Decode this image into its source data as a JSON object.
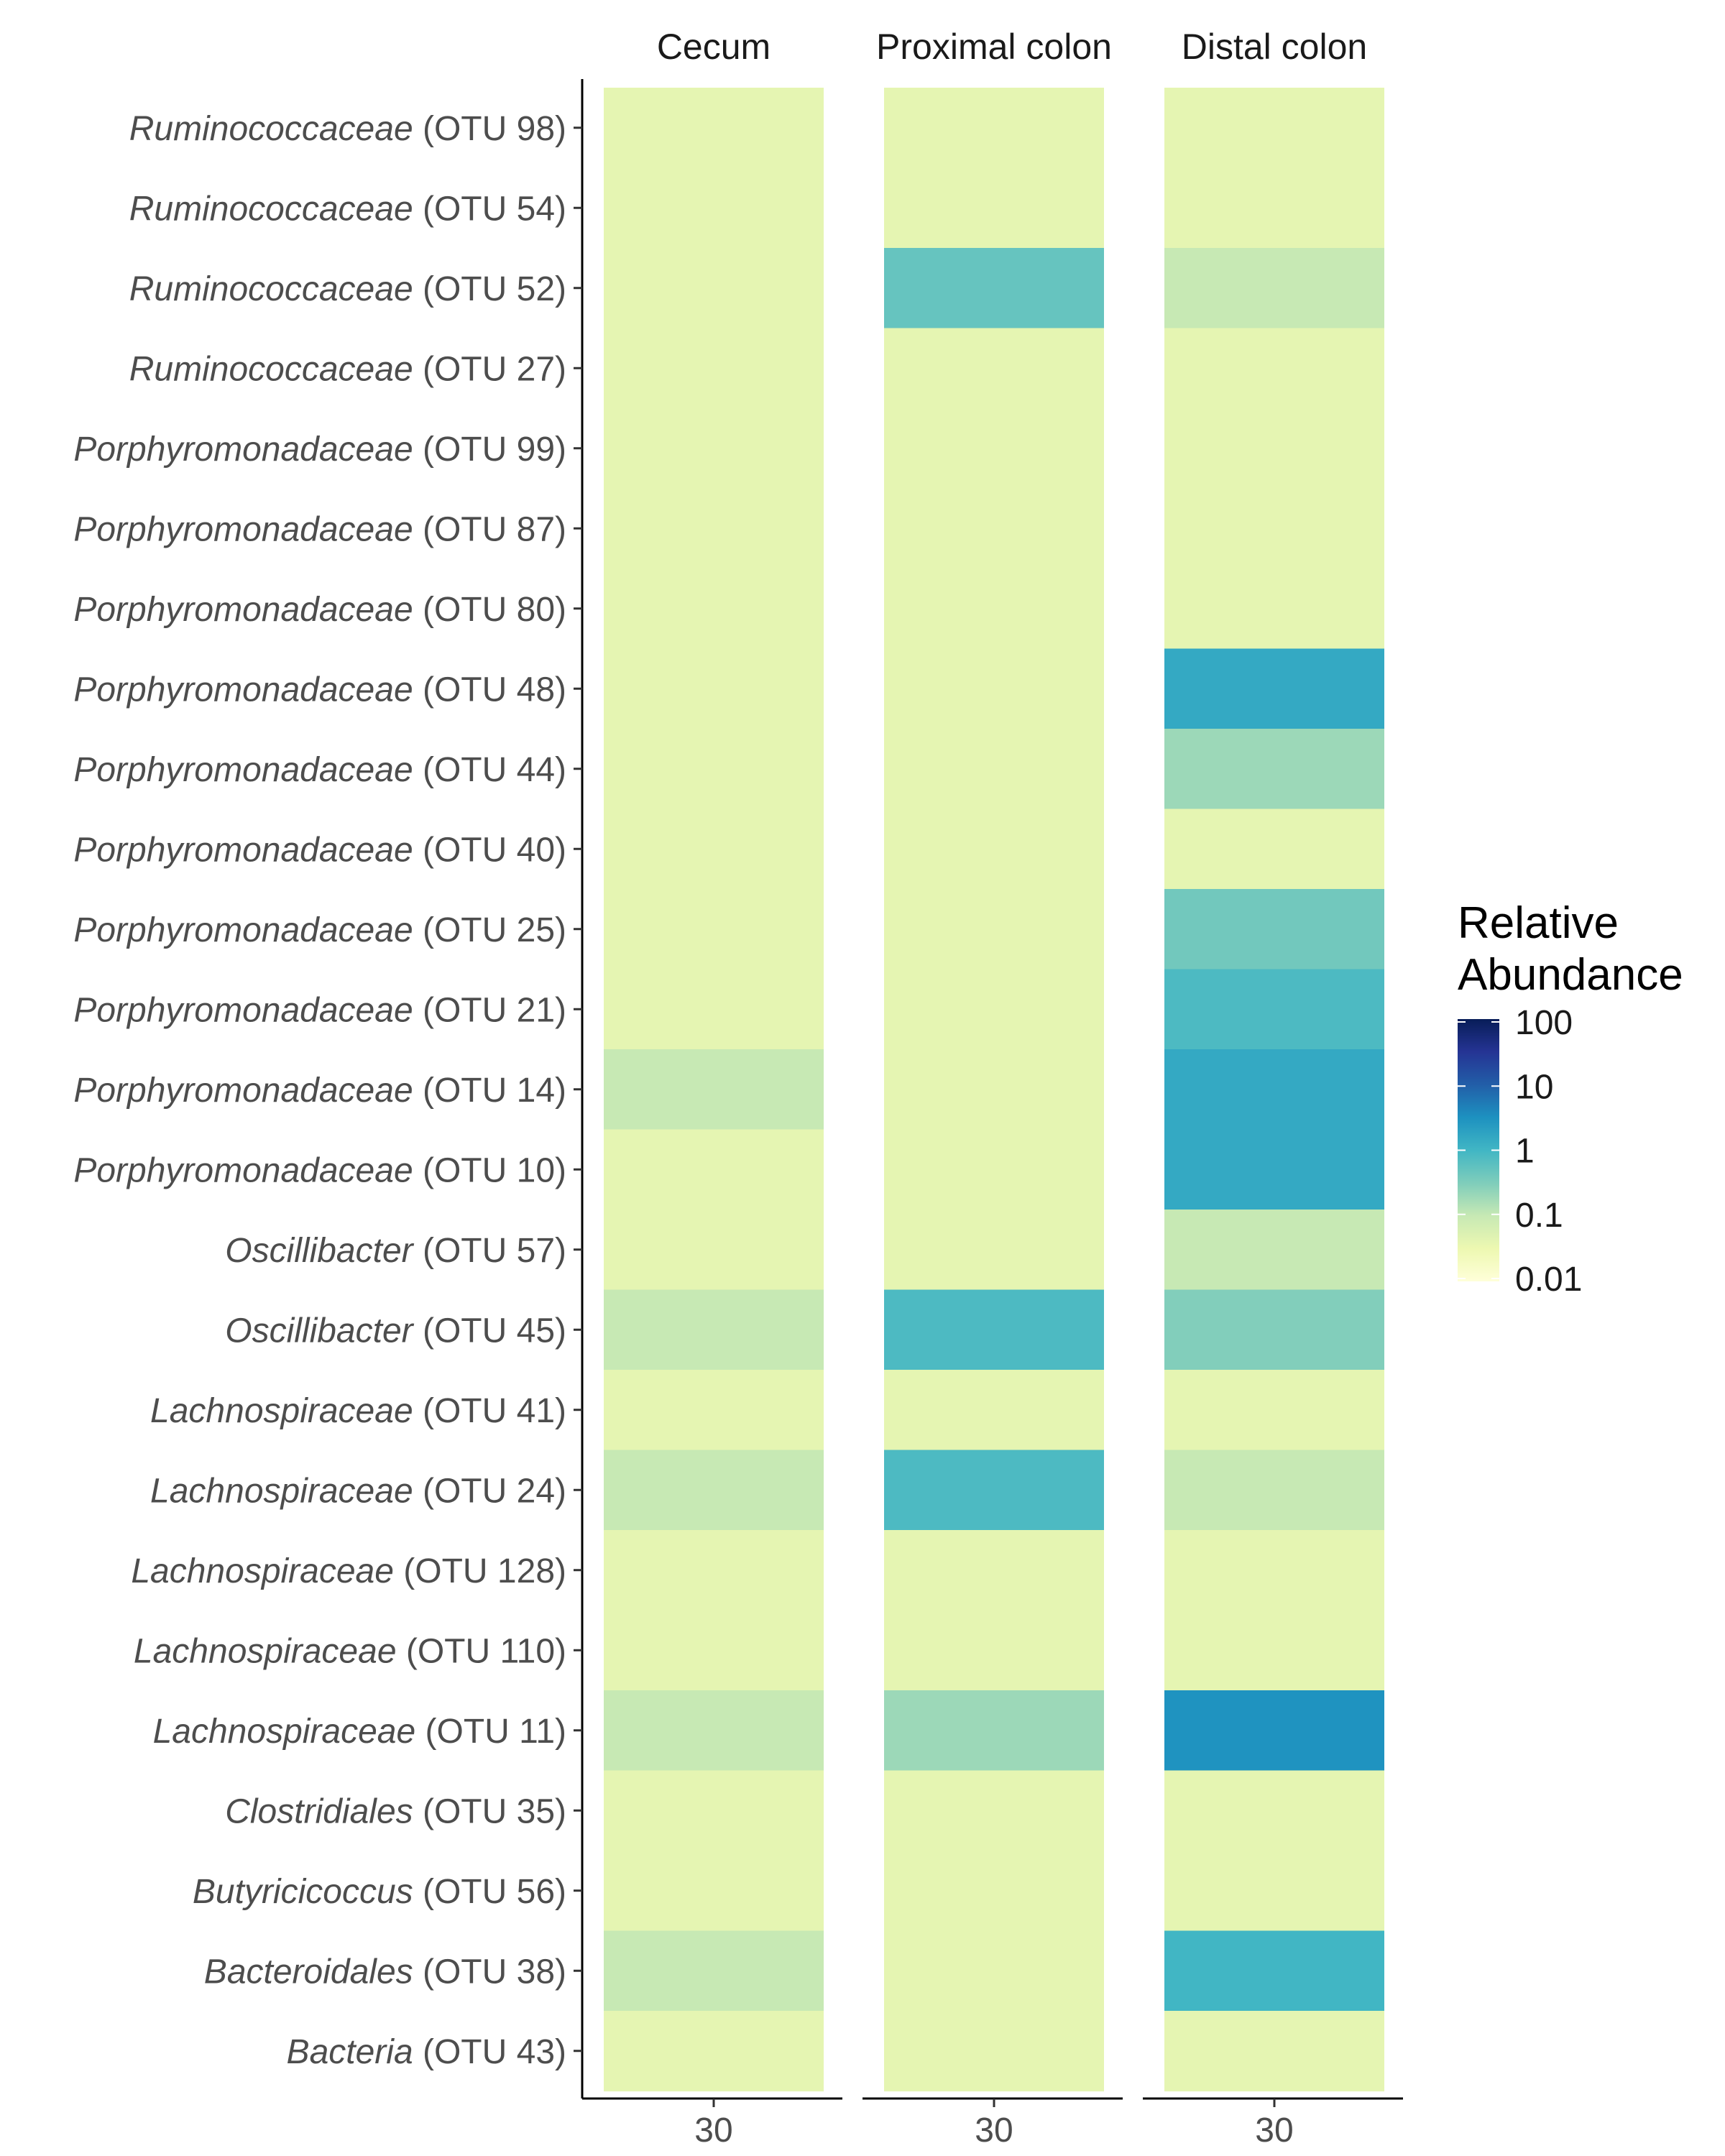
{
  "chart_data": {
    "type": "heatmap",
    "facets": [
      "Cecum",
      "Proximal colon",
      "Distal colon"
    ],
    "x_categories": [
      "30"
    ],
    "rows": [
      {
        "taxon": "Ruminococcaceae",
        "otu": "(OTU 98)"
      },
      {
        "taxon": "Ruminococcaceae",
        "otu": "(OTU 54)"
      },
      {
        "taxon": "Ruminococcaceae",
        "otu": "(OTU 52)"
      },
      {
        "taxon": "Ruminococcaceae",
        "otu": "(OTU 27)"
      },
      {
        "taxon": "Porphyromonadaceae",
        "otu": "(OTU 99)"
      },
      {
        "taxon": "Porphyromonadaceae",
        "otu": "(OTU 87)"
      },
      {
        "taxon": "Porphyromonadaceae",
        "otu": "(OTU 80)"
      },
      {
        "taxon": "Porphyromonadaceae",
        "otu": "(OTU 48)"
      },
      {
        "taxon": "Porphyromonadaceae",
        "otu": "(OTU 44)"
      },
      {
        "taxon": "Porphyromonadaceae",
        "otu": "(OTU 40)"
      },
      {
        "taxon": "Porphyromonadaceae",
        "otu": "(OTU 25)"
      },
      {
        "taxon": "Porphyromonadaceae",
        "otu": "(OTU 21)"
      },
      {
        "taxon": "Porphyromonadaceae",
        "otu": "(OTU 14)"
      },
      {
        "taxon": "Porphyromonadaceae",
        "otu": "(OTU 10)"
      },
      {
        "taxon": "Oscillibacter",
        "otu": "(OTU 57)"
      },
      {
        "taxon": "Oscillibacter",
        "otu": "(OTU 45)"
      },
      {
        "taxon": "Lachnospiraceae",
        "otu": "(OTU 41)"
      },
      {
        "taxon": "Lachnospiraceae",
        "otu": "(OTU 24)"
      },
      {
        "taxon": "Lachnospiraceae",
        "otu": "(OTU 128)"
      },
      {
        "taxon": "Lachnospiraceae",
        "otu": "(OTU 110)"
      },
      {
        "taxon": "Lachnospiraceae",
        "otu": "(OTU 11)"
      },
      {
        "taxon": "Clostridiales",
        "otu": "(OTU 35)"
      },
      {
        "taxon": "Butyricicoccus",
        "otu": "(OTU 56)"
      },
      {
        "taxon": "Bacteroidales",
        "otu": "(OTU 38)"
      },
      {
        "taxon": "Bacteria",
        "otu": "(OTU 43)"
      }
    ],
    "values": {
      "Cecum": [
        0.04,
        0.04,
        0.04,
        0.04,
        0.04,
        0.04,
        0.04,
        0.04,
        0.04,
        0.04,
        0.04,
        0.04,
        0.1,
        0.04,
        0.04,
        0.1,
        0.04,
        0.1,
        0.04,
        0.04,
        0.1,
        0.04,
        0.04,
        0.1,
        0.04
      ],
      "Proximal colon": [
        0.04,
        0.04,
        0.5,
        0.04,
        0.04,
        0.04,
        0.04,
        0.04,
        0.04,
        0.04,
        0.04,
        0.04,
        0.04,
        0.04,
        0.04,
        0.8,
        0.04,
        0.8,
        0.04,
        0.04,
        0.2,
        0.04,
        0.04,
        0.04,
        0.04
      ],
      "Distal colon": [
        0.04,
        0.04,
        0.1,
        0.04,
        0.04,
        0.04,
        0.04,
        1.5,
        0.2,
        0.04,
        0.4,
        0.8,
        1.5,
        1.5,
        0.1,
        0.3,
        0.04,
        0.1,
        0.04,
        0.04,
        3,
        0.04,
        0.04,
        1,
        0.04
      ]
    },
    "scale": "log10",
    "color_range": [
      0.01,
      100
    ],
    "legend": {
      "title_lines": [
        "Relative",
        "Abundance"
      ],
      "ticks": [
        "100",
        "10",
        "1",
        "0.1",
        "0.01"
      ],
      "placement": "right"
    },
    "palette": [
      "#ffffd9",
      "#edf8b1",
      "#c7e9b4",
      "#7fcdbb",
      "#41b6c4",
      "#1d91c0",
      "#225ea8",
      "#253494",
      "#081d58"
    ],
    "grid": false
  }
}
